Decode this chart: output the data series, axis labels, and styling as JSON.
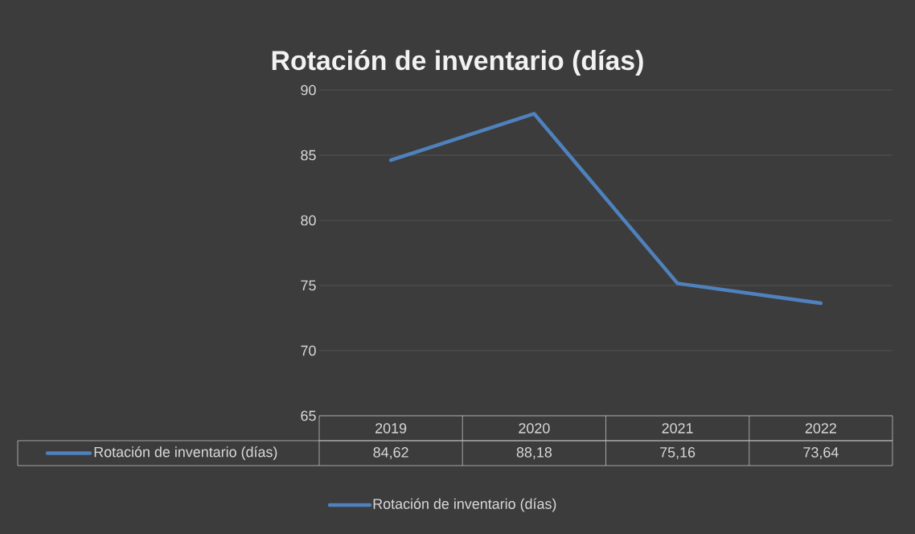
{
  "chart_data": {
    "type": "line",
    "title": "Rotación de inventario (días)",
    "categories": [
      "2019",
      "2020",
      "2021",
      "2022"
    ],
    "series": [
      {
        "name": "Rotación de inventario (días)",
        "color": "#4f81bd",
        "values": [
          84.62,
          88.18,
          75.16,
          73.64
        ],
        "value_labels": [
          "84,62",
          "88,18",
          "75,16",
          "73,64"
        ]
      }
    ],
    "ylim": [
      65,
      90
    ],
    "yticks": [
      65,
      70,
      75,
      80,
      85,
      90
    ],
    "grid": "y",
    "legend": "bottom",
    "marker": "none",
    "line_style": "solid"
  }
}
